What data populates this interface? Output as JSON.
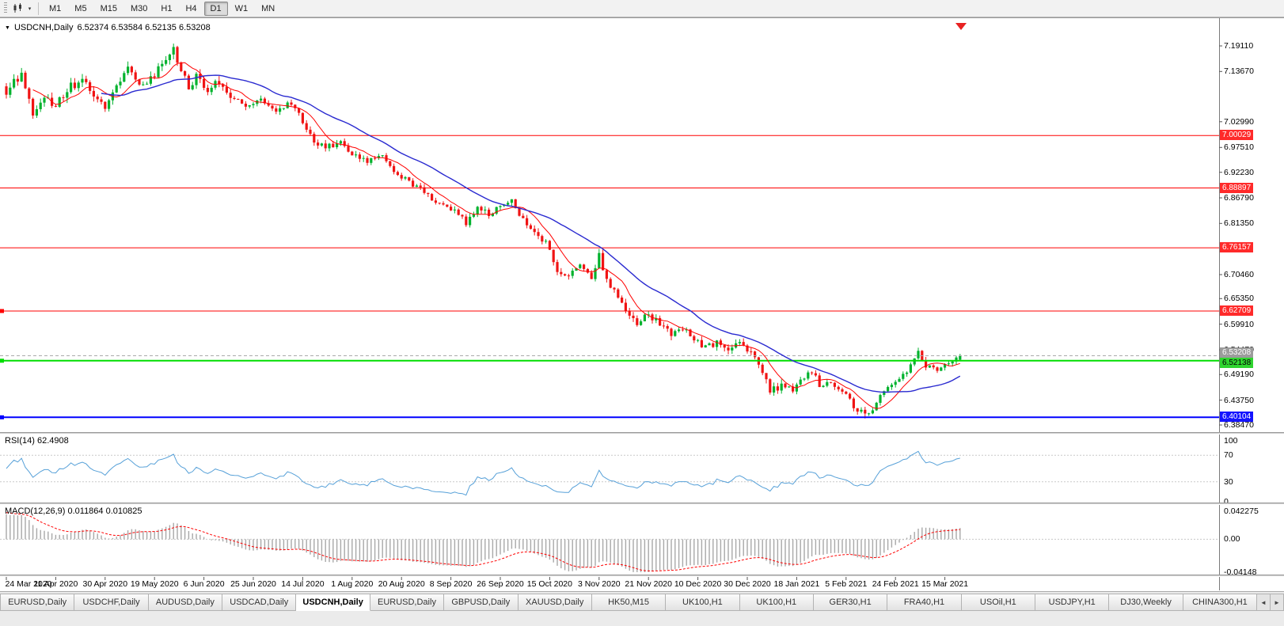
{
  "toolbar": {
    "dropdown_icon": "▾",
    "chart_type_icon": "candlestick-chart-icon",
    "periods": [
      {
        "label": "M1",
        "active": false
      },
      {
        "label": "M5",
        "active": false
      },
      {
        "label": "M15",
        "active": false
      },
      {
        "label": "M30",
        "active": false
      },
      {
        "label": "H1",
        "active": false
      },
      {
        "label": "H4",
        "active": false
      },
      {
        "label": "D1",
        "active": true
      },
      {
        "label": "W1",
        "active": false
      },
      {
        "label": "MN",
        "active": false
      }
    ]
  },
  "chart": {
    "menu_icon": "▼",
    "title": "USDCNH,Daily",
    "ohlc": "6.52374 6.53584 6.52135 6.53208"
  },
  "price_axis": {
    "plain_labels": [
      {
        "text": "7.19110",
        "value": 7.1911
      },
      {
        "text": "7.13670",
        "value": 7.1367
      },
      {
        "text": "7.02990",
        "value": 7.0299
      },
      {
        "text": "6.97510",
        "value": 6.9751
      },
      {
        "text": "6.92230",
        "value": 6.9223
      },
      {
        "text": "6.86790",
        "value": 6.8679
      },
      {
        "text": "6.81350",
        "value": 6.8135
      },
      {
        "text": "6.70460",
        "value": 6.7046
      },
      {
        "text": "6.65350",
        "value": 6.6535
      },
      {
        "text": "6.59910",
        "value": 6.5991
      },
      {
        "text": "6.54470",
        "value": 6.5447
      },
      {
        "text": "6.49190",
        "value": 6.4919
      },
      {
        "text": "6.43750",
        "value": 6.4375
      },
      {
        "text": "6.38470",
        "value": 6.3847
      }
    ],
    "tags": [
      {
        "text": "7.00029",
        "value": 7.00029,
        "bg": "#ff2a2a",
        "fg": "#ffffff"
      },
      {
        "text": "6.88897",
        "value": 6.88897,
        "bg": "#ff2a2a",
        "fg": "#ffffff"
      },
      {
        "text": "6.76157",
        "value": 6.76157,
        "bg": "#ff2a2a",
        "fg": "#ffffff"
      },
      {
        "text": "6.62709",
        "value": 6.62709,
        "bg": "#ff2a2a",
        "fg": "#ffffff"
      },
      {
        "text": "6.53208",
        "value": 6.53208,
        "bg": "#9c9c9c",
        "fg": "#ffffff"
      },
      {
        "text": "6.52138",
        "value": 6.52138,
        "bg": "#2fd42f",
        "fg": "#000000"
      },
      {
        "text": "6.40104",
        "value": 6.40104,
        "bg": "#1414ff",
        "fg": "#ffffff"
      }
    ]
  },
  "rsi_panel": {
    "label": "RSI(14) 62.4908",
    "line_color": "#56a0d8",
    "levels": [
      {
        "text": "100",
        "value": 100
      },
      {
        "text": "70",
        "value": 70
      },
      {
        "text": "30",
        "value": 30
      },
      {
        "text": "0",
        "value": 0
      }
    ]
  },
  "macd_panel": {
    "label": "MACD(12,26,9) 0.011864 0.010825",
    "histogram_color": "#a8a8a8",
    "signal_color": "#ff0000",
    "levels": [
      {
        "text": "0.042275",
        "value": 0.042275
      },
      {
        "text": "0.00",
        "value": 0
      },
      {
        "text": "-0.04148",
        "value": -0.04148
      }
    ]
  },
  "tabs": {
    "scroll_left_icon": "◄",
    "scroll_right_icon": "►",
    "items": [
      {
        "label": "EURUSD,Daily",
        "active": false
      },
      {
        "label": "USDCHF,Daily",
        "active": false
      },
      {
        "label": "AUDUSD,Daily",
        "active": false
      },
      {
        "label": "USDCAD,Daily",
        "active": false
      },
      {
        "label": "USDCNH,Daily",
        "active": true
      },
      {
        "label": "EURUSD,Daily",
        "active": false
      },
      {
        "label": "GBPUSD,Daily",
        "active": false
      },
      {
        "label": "XAUUSD,Daily",
        "active": false
      },
      {
        "label": "HK50,M15",
        "active": false
      },
      {
        "label": "UK100,H1",
        "active": false
      },
      {
        "label": "UK100,H1",
        "active": false
      },
      {
        "label": "GER30,H1",
        "active": false
      },
      {
        "label": "FRA40,H1",
        "active": false
      },
      {
        "label": "USOil,H1",
        "active": false
      },
      {
        "label": "USDJPY,H1",
        "active": false
      },
      {
        "label": "DJ30,Weekly",
        "active": false
      },
      {
        "label": "CHINA300,H1",
        "active": false
      }
    ]
  },
  "chart_data": {
    "type": "candlestick",
    "symbol": "USDCNH",
    "timeframe": "Daily",
    "bars": 252,
    "y_range": [
      6.3695,
      7.25
    ],
    "x_label_bar_step": 13,
    "x_labels": [
      "24 Mar 2020",
      "11 Apr 2020",
      "30 Apr 2020",
      "19 May 2020",
      "6 Jun 2020",
      "25 Jun 2020",
      "14 Jul 2020",
      "1 Aug 2020",
      "20 Aug 2020",
      "8 Sep 2020",
      "26 Sep 2020",
      "15 Oct 2020",
      "3 Nov 2020",
      "21 Nov 2020",
      "10 Dec 2020",
      "30 Dec 2020",
      "18 Jan 2021",
      "5 Feb 2021",
      "24 Feb 2021",
      "15 Mar 2021"
    ],
    "anchors": {
      "index": [
        0,
        4,
        7,
        10,
        13,
        16,
        20,
        23,
        26,
        29,
        32,
        35,
        38,
        41,
        44,
        46,
        48,
        50,
        53,
        56,
        59,
        63,
        67,
        71,
        75,
        78,
        81,
        84,
        88,
        91,
        95,
        99,
        103,
        107,
        110,
        113,
        116,
        119,
        121,
        124,
        127,
        130,
        133,
        136,
        139,
        142,
        145,
        148,
        151,
        154,
        156,
        158,
        161,
        163,
        166,
        169,
        172,
        175,
        178,
        181,
        184,
        187,
        190,
        193,
        196,
        199,
        201,
        204,
        207,
        209,
        212,
        214,
        217,
        220,
        223,
        226,
        228,
        231,
        234,
        237,
        240,
        242,
        245,
        248,
        251
      ],
      "close": [
        7.095,
        7.13,
        7.05,
        7.08,
        7.065,
        7.1,
        7.12,
        7.09,
        7.065,
        7.11,
        7.14,
        7.1,
        7.12,
        7.15,
        7.185,
        7.14,
        7.1,
        7.13,
        7.1,
        7.115,
        7.085,
        7.06,
        7.08,
        7.055,
        7.07,
        7.03,
        6.99,
        6.975,
        6.985,
        6.96,
        6.945,
        6.955,
        6.92,
        6.895,
        6.88,
        6.86,
        6.85,
        6.835,
        6.815,
        6.845,
        6.835,
        6.85,
        6.86,
        6.82,
        6.8,
        6.77,
        6.715,
        6.7,
        6.725,
        6.7,
        6.745,
        6.69,
        6.66,
        6.625,
        6.6,
        6.62,
        6.598,
        6.578,
        6.59,
        6.565,
        6.55,
        6.56,
        6.545,
        6.555,
        6.54,
        6.5,
        6.455,
        6.47,
        6.46,
        6.48,
        6.5,
        6.47,
        6.475,
        6.46,
        6.425,
        6.405,
        6.42,
        6.46,
        6.475,
        6.5,
        6.545,
        6.51,
        6.505,
        6.52,
        6.532
      ]
    },
    "last_bar": {
      "open": 6.52374,
      "high": 6.53584,
      "low": 6.52135,
      "close": 6.53208
    },
    "up_color": "#00b22d",
    "down_color": "#f01414",
    "hlines": [
      {
        "value": 7.00029,
        "color": "#ff0000",
        "width": 1,
        "style": "solid",
        "handle": false
      },
      {
        "value": 6.88897,
        "color": "#ff0000",
        "width": 1,
        "style": "solid",
        "handle": false
      },
      {
        "value": 6.76157,
        "color": "#ff0000",
        "width": 1,
        "style": "solid",
        "handle": false
      },
      {
        "value": 6.62709,
        "color": "#ff0000",
        "width": 1,
        "style": "solid",
        "handle": true
      },
      {
        "value": 6.53208,
        "color": "#aaaaaa",
        "width": 1,
        "style": "dashed",
        "handle": false
      },
      {
        "value": 6.52138,
        "color": "#00dd00",
        "width": 2,
        "style": "solid",
        "handle": true
      },
      {
        "value": 6.40104,
        "color": "#0000ff",
        "width": 2,
        "style": "solid",
        "handle": true
      }
    ],
    "ma_fast": {
      "period": 8,
      "color": "#ff0000"
    },
    "ma_slow": {
      "period": 26,
      "color": "#2a2ad0"
    },
    "rsi": {
      "period": 14,
      "last": 62.4908
    },
    "macd": {
      "fast": 12,
      "slow": 26,
      "signal": 9,
      "last_macd": 0.011864,
      "last_signal": 0.010825
    }
  }
}
